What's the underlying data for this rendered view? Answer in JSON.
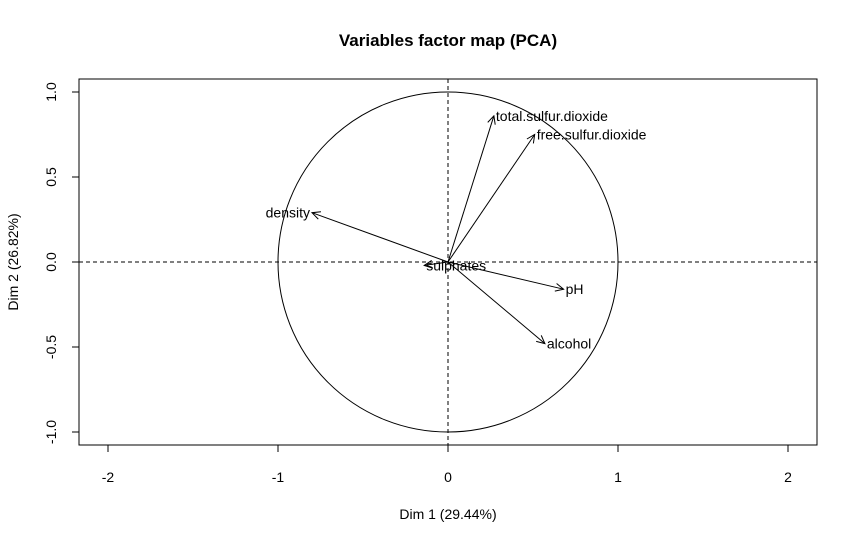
{
  "chart_data": {
    "type": "scatter",
    "title": "Variables factor map (PCA)",
    "xlabel": "Dim 1 (29.44%)",
    "ylabel": "Dim 2 (26.82%)",
    "xlim": [
      -2,
      2
    ],
    "ylim": [
      -1.08,
      1.08
    ],
    "x_ticks": [
      "-2",
      "-1",
      "0",
      "1",
      "2"
    ],
    "y_ticks": [
      "-1.0",
      "-0.5",
      "0.0",
      "0.5",
      "1.0"
    ],
    "grid": false,
    "unit_circle": true,
    "reference_lines": "dashed at x=0 and y=0",
    "colors": {
      "lines": "#000000",
      "background": "#ffffff"
    },
    "variables": [
      {
        "name": "total.sulfur.dioxide",
        "x": 0.27,
        "y": 0.86,
        "label_side": "right"
      },
      {
        "name": "free.sulfur.dioxide",
        "x": 0.51,
        "y": 0.75,
        "label_side": "right"
      },
      {
        "name": "density",
        "x": -0.8,
        "y": 0.29,
        "label_side": "left"
      },
      {
        "name": "sulphates",
        "x": -0.14,
        "y": -0.02,
        "label_side": "right"
      },
      {
        "name": "pH",
        "x": 0.68,
        "y": -0.16,
        "label_side": "right"
      },
      {
        "name": "alcohol",
        "x": 0.57,
        "y": -0.48,
        "label_side": "right"
      }
    ]
  }
}
